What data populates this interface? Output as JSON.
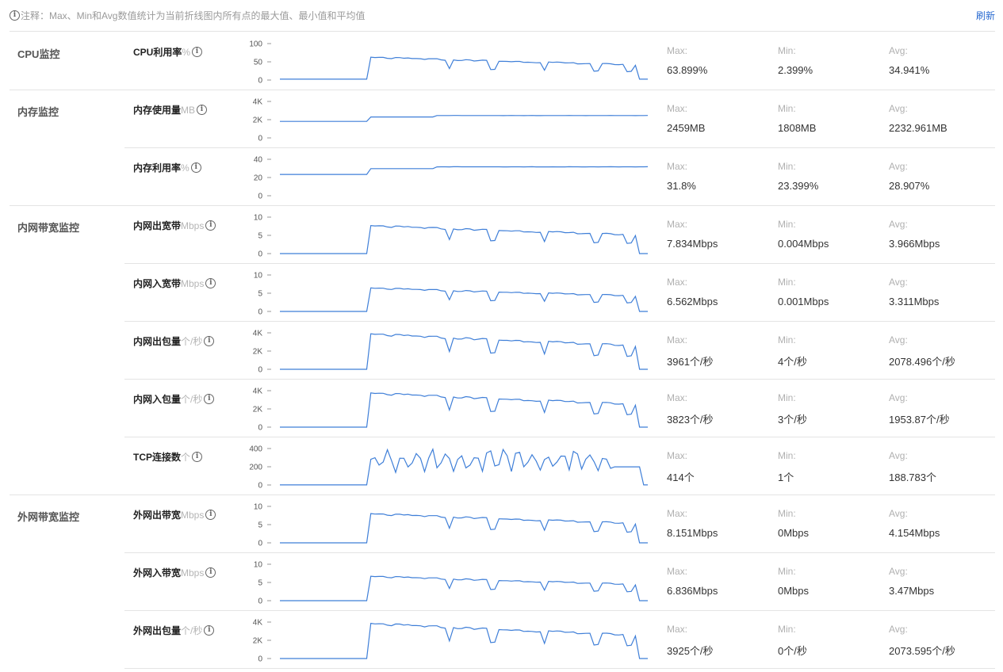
{
  "note": "注释：Max、Min和Avg数值统计为当前折线图内所有点的最大值、最小值和平均值",
  "refresh_label": "刷新",
  "stat_labels": {
    "max": "Max:",
    "min": "Min:",
    "avg": "Avg:"
  },
  "groups": [
    {
      "title": "CPU监控",
      "metrics": [
        {
          "name": "CPU利用率",
          "unit": "%",
          "ticks": [
            "100",
            "50",
            "0"
          ],
          "ymax": 100,
          "max": "63.899%",
          "min": "2.399%",
          "avg": "34.941%",
          "shape": "cpu",
          "peak": 63.9,
          "base": 2.4
        }
      ]
    },
    {
      "title": "内存监控",
      "metrics": [
        {
          "name": "内存使用量",
          "unit": "MB",
          "ticks": [
            "4K",
            "2K",
            "0"
          ],
          "ymax": 4000,
          "max": "2459MB",
          "min": "1808MB",
          "avg": "2232.961MB",
          "shape": "mem",
          "peak": 2459,
          "base": 1808
        },
        {
          "name": "内存利用率",
          "unit": "%",
          "ticks": [
            "40",
            "20",
            "0"
          ],
          "ymax": 40,
          "max": "31.8%",
          "min": "23.399%",
          "avg": "28.907%",
          "shape": "mem",
          "peak": 31.8,
          "base": 23.4
        }
      ]
    },
    {
      "title": "内网带宽监控",
      "metrics": [
        {
          "name": "内网出宽带",
          "unit": "Mbps",
          "ticks": [
            "10",
            "5",
            "0"
          ],
          "ymax": 10,
          "max": "7.834Mbps",
          "min": "0.004Mbps",
          "avg": "3.966Mbps",
          "shape": "net",
          "peak": 7.83,
          "base": 0
        },
        {
          "name": "内网入宽带",
          "unit": "Mbps",
          "ticks": [
            "10",
            "5",
            "0"
          ],
          "ymax": 10,
          "max": "6.562Mbps",
          "min": "0.001Mbps",
          "avg": "3.311Mbps",
          "shape": "net",
          "peak": 6.56,
          "base": 0
        },
        {
          "name": "内网出包量",
          "unit": "个/秒",
          "ticks": [
            "4K",
            "2K",
            "0"
          ],
          "ymax": 4000,
          "max": "3961个/秒",
          "min": "4个/秒",
          "avg": "2078.496个/秒",
          "shape": "net",
          "peak": 3961,
          "base": 4
        },
        {
          "name": "内网入包量",
          "unit": "个/秒",
          "ticks": [
            "4K",
            "2K",
            "0"
          ],
          "ymax": 4000,
          "max": "3823个/秒",
          "min": "3个/秒",
          "avg": "1953.87个/秒",
          "shape": "net",
          "peak": 3823,
          "base": 3
        },
        {
          "name": "TCP连接数",
          "unit": "个",
          "ticks": [
            "400",
            "200",
            "0"
          ],
          "ymax": 400,
          "max": "414个",
          "min": "1个",
          "avg": "188.783个",
          "shape": "tcp",
          "peak": 414,
          "base": 1
        }
      ]
    },
    {
      "title": "外网带宽监控",
      "metrics": [
        {
          "name": "外网出带宽",
          "unit": "Mbps",
          "ticks": [
            "10",
            "5",
            "0"
          ],
          "ymax": 10,
          "max": "8.151Mbps",
          "min": "0Mbps",
          "avg": "4.154Mbps",
          "shape": "net",
          "peak": 8.15,
          "base": 0
        },
        {
          "name": "外网入带宽",
          "unit": "Mbps",
          "ticks": [
            "10",
            "5",
            "0"
          ],
          "ymax": 10,
          "max": "6.836Mbps",
          "min": "0Mbps",
          "avg": "3.47Mbps",
          "shape": "net",
          "peak": 6.84,
          "base": 0
        },
        {
          "name": "外网出包量",
          "unit": "个/秒",
          "ticks": [
            "4K",
            "2K",
            "0"
          ],
          "ymax": 4000,
          "max": "3925个/秒",
          "min": "0个/秒",
          "avg": "2073.595个/秒",
          "shape": "net",
          "peak": 3925,
          "base": 0
        }
      ]
    }
  ],
  "colors": {
    "line": "#3f7fd8",
    "axis": "#999999",
    "link": "#2a6bd1"
  }
}
